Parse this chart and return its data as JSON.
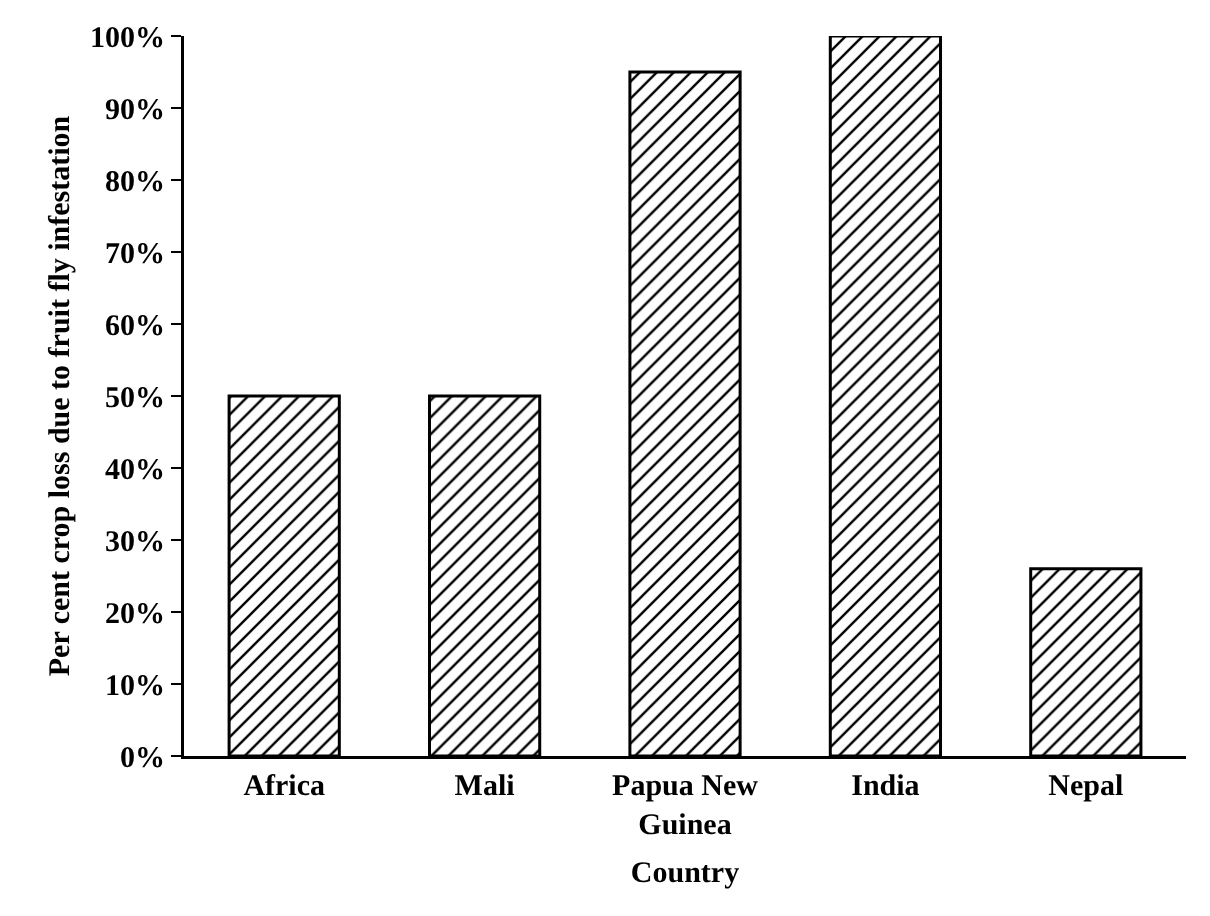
{
  "chart_data": {
    "type": "bar",
    "xlabel": "Country",
    "ylabel": "Per cent crop loss due to fruit fly infestation",
    "categories": [
      "Africa",
      "Mali",
      "Papua New Guinea",
      "India",
      "Nepal"
    ],
    "values": [
      50,
      50,
      95,
      100,
      26
    ],
    "color": "#000000",
    "ylim": [
      0,
      100
    ],
    "yticks": [
      {
        "value": 0,
        "label": "0%"
      },
      {
        "value": 10,
        "label": "10%"
      },
      {
        "value": 20,
        "label": "20%"
      },
      {
        "value": 30,
        "label": "30%"
      },
      {
        "value": 40,
        "label": "40%"
      },
      {
        "value": 50,
        "label": "50%"
      },
      {
        "value": 60,
        "label": "60%"
      },
      {
        "value": 70,
        "label": "70%"
      },
      {
        "value": 80,
        "label": "80%"
      },
      {
        "value": 90,
        "label": "90%"
      },
      {
        "value": 100,
        "label": "100%"
      }
    ],
    "data_labels": false
  }
}
